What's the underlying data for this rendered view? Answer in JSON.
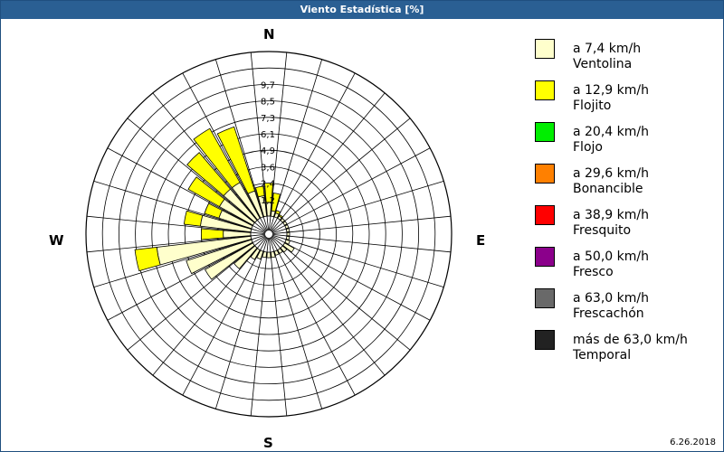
{
  "window": {
    "title": "Viento Estadística [%]"
  },
  "compass": {
    "north": "N",
    "east": "E",
    "south": "S",
    "west": "W"
  },
  "legend": [
    {
      "range": "a 7,4 km/h",
      "name": "Ventolina",
      "color": "#ffffcc"
    },
    {
      "range": "a 12,9 km/h",
      "name": "Flojito",
      "color": "#ffff00"
    },
    {
      "range": "a 20,4 km/h",
      "name": "Flojo",
      "color": "#00ee00"
    },
    {
      "range": "a 29,6 km/h",
      "name": "Bonancible",
      "color": "#ff8000"
    },
    {
      "range": "a 38,9 km/h",
      "name": "Fresquito",
      "color": "#ff0000"
    },
    {
      "range": "a 50,0 km/h",
      "name": "Fresco",
      "color": "#8b008b"
    },
    {
      "range": "a 63,0 km/h",
      "name": "Frescachón",
      "color": "#696969"
    },
    {
      "range": "más de 63,0 km/h",
      "name": "Temporal",
      "color": "#222222"
    }
  ],
  "footer": {
    "date": "6.26.2018"
  },
  "chart_data": {
    "type": "wind-rose",
    "title": "Viento Estadística [%]",
    "unit": "%",
    "directions_deg": [
      0,
      11.25,
      22.5,
      33.75,
      45,
      56.25,
      67.5,
      78.75,
      90,
      101.25,
      112.5,
      123.75,
      135,
      146.25,
      157.5,
      168.75,
      180,
      191.25,
      202.5,
      213.75,
      225,
      236.25,
      247.5,
      258.75,
      270,
      281.25,
      292.5,
      303.75,
      315,
      326.25,
      337.5,
      348.75
    ],
    "ring_max": 12,
    "ring_step": 1.2,
    "tick_labels": [
      "1,2",
      "2,4",
      "3,6",
      "4,9",
      "6,1",
      "7,3",
      "8,5",
      "9,7"
    ],
    "series": [
      {
        "name": "Ventolina",
        "values": [
          1.0,
          0.4,
          0.3,
          0.2,
          0.2,
          0.2,
          0.2,
          0.2,
          0.2,
          0.2,
          0.3,
          0.8,
          0.4,
          0.3,
          0.3,
          0.4,
          0.4,
          0.4,
          0.6,
          0.8,
          2.0,
          4.0,
          5.0,
          6.9,
          2.0,
          3.7,
          2.5,
          2.8,
          3.0,
          3.0,
          2.0,
          1.5
        ]
      },
      {
        "name": "Flojito",
        "values": [
          1.4,
          1.3,
          0.2,
          0.1,
          0.0,
          0.0,
          0.0,
          0.0,
          0.0,
          0.0,
          0.0,
          0.0,
          0.0,
          0.0,
          0.0,
          0.0,
          0.0,
          0.0,
          0.0,
          0.0,
          0.0,
          0.0,
          0.0,
          1.6,
          1.6,
          1.2,
          1.1,
          2.6,
          3.5,
          4.5,
          4.9,
          0.7
        ]
      },
      {
        "name": "Flojo",
        "values": [
          0.0,
          0.0,
          0.0,
          0.0,
          0.0,
          0.0,
          0.0,
          0.0,
          0.0,
          0.0,
          0.0,
          0.0,
          0.0,
          0.0,
          0.0,
          0.0,
          0.0,
          0.0,
          0.0,
          0.0,
          0.0,
          0.0,
          0.0,
          0.0,
          0.0,
          0.0,
          0.0,
          0.0,
          0.0,
          0.0,
          0.0,
          0.0
        ]
      }
    ]
  }
}
